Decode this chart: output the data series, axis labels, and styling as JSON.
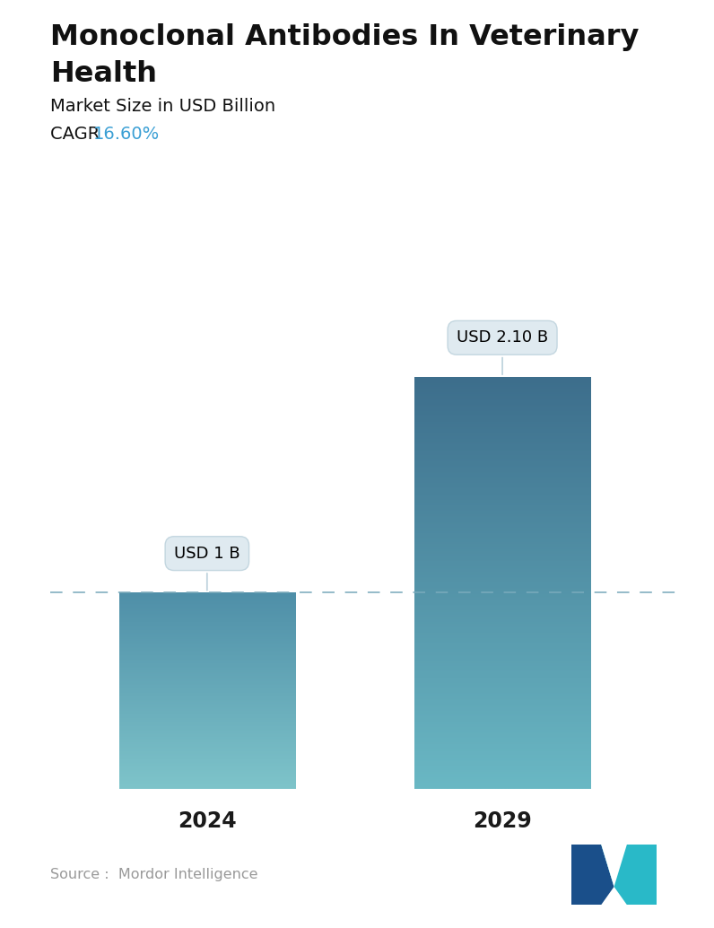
{
  "title_line1": "Monoclonal Antibodies In Veterinary",
  "title_line2": "Health",
  "subtitle": "Market Size in USD Billion",
  "cagr_label": "CAGR  ",
  "cagr_value": "16.60%",
  "cagr_color": "#3a9fd4",
  "categories": [
    "2024",
    "2029"
  ],
  "values": [
    1.0,
    2.1
  ],
  "bar_labels": [
    "USD 1 B",
    "USD 2.10 B"
  ],
  "bar_top_colors": [
    "#4f8fa8",
    "#3d6e8c"
  ],
  "bar_bottom_colors": [
    "#7ec4ca",
    "#6ab8c4"
  ],
  "dashed_line_y": 1.0,
  "dashed_line_color": "#7aaabb",
  "source_text": "Source :  Mordor Intelligence",
  "source_color": "#999999",
  "background_color": "#ffffff",
  "title_color": "#111111",
  "tick_fontsize": 17,
  "title_fontsize": 23,
  "subtitle_fontsize": 14,
  "cagr_fontsize": 14,
  "ylim": [
    0,
    2.65
  ],
  "bar_width": 0.28,
  "x_positions": [
    0.25,
    0.72
  ]
}
